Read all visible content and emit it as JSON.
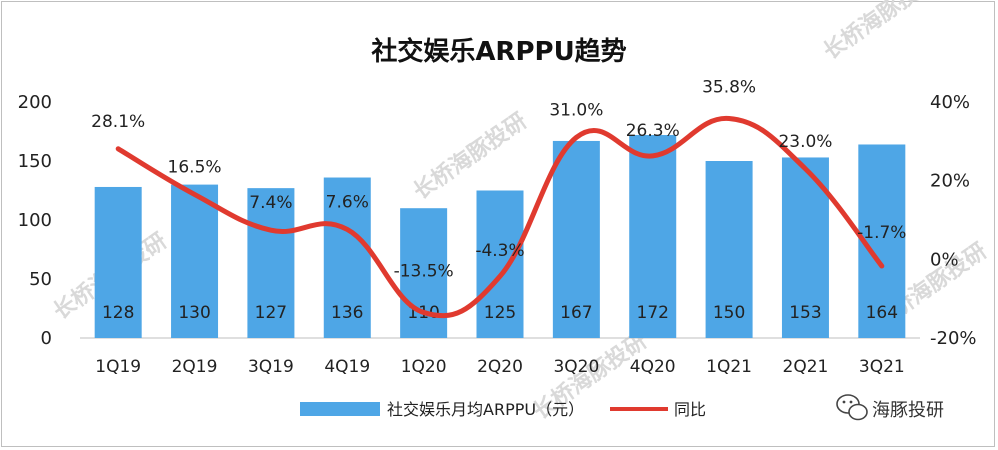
{
  "chart_data": {
    "type": "bar",
    "title": "社交娱乐ARPPU趋势",
    "categories": [
      "1Q19",
      "2Q19",
      "3Q19",
      "4Q19",
      "1Q20",
      "2Q20",
      "3Q20",
      "4Q20",
      "1Q21",
      "2Q21",
      "3Q21"
    ],
    "series": [
      {
        "name": "社交娱乐月均ARPPU（元）",
        "type": "bar",
        "axis": "left",
        "color": "#4ea6e6",
        "values": [
          128,
          130,
          127,
          136,
          110,
          125,
          167,
          172,
          150,
          153,
          164
        ]
      },
      {
        "name": "同比",
        "type": "line",
        "axis": "right",
        "color": "#e03a2f",
        "values": [
          28.1,
          16.5,
          7.4,
          7.6,
          -13.5,
          -4.3,
          31.0,
          26.3,
          35.8,
          23.0,
          -1.7
        ],
        "labels": [
          "28.1%",
          "16.5%",
          "7.4%",
          "7.6%",
          "-13.5%",
          "-4.3%",
          "31.0%",
          "26.3%",
          "35.8%",
          "23.0%",
          "-1.7%"
        ]
      }
    ],
    "y_left": {
      "ylim": [
        0,
        200
      ],
      "ticks": [
        "0",
        "50",
        "100",
        "150",
        "200"
      ]
    },
    "y_right": {
      "ylim": [
        -20,
        40
      ],
      "ticks": [
        "-20%",
        "0%",
        "20%",
        "40%"
      ]
    },
    "legend": "bottom-center",
    "grid": false
  },
  "branding": {
    "name": "海豚投研",
    "icon": "wechat-icon"
  },
  "watermark": {
    "text": "长桥海豚投研"
  }
}
